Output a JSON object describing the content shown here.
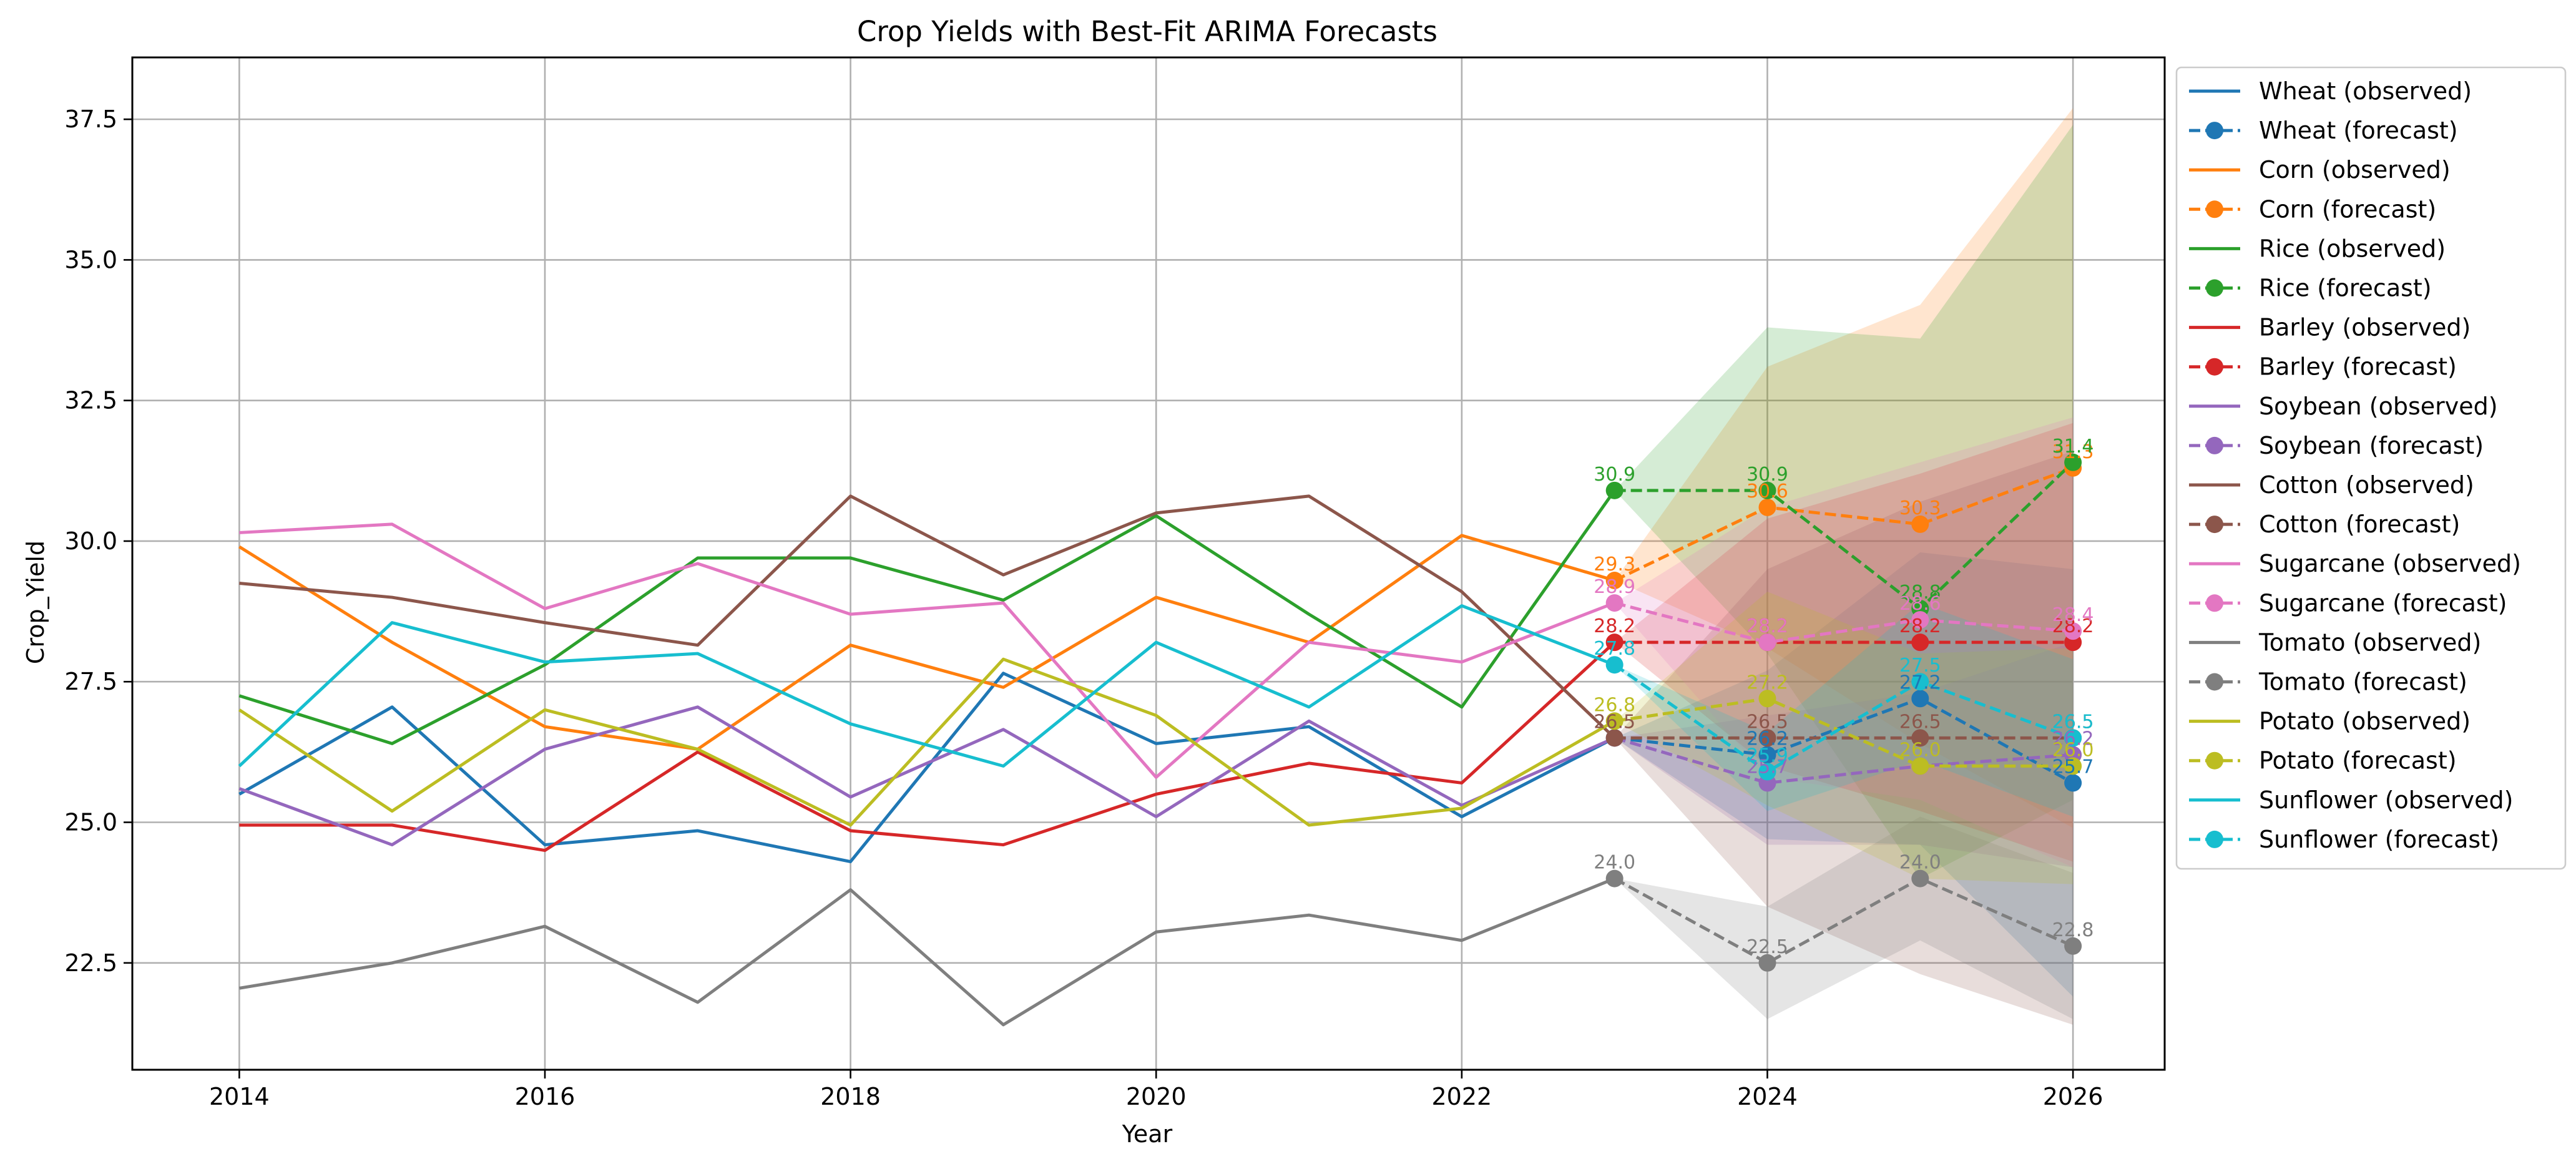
{
  "chart_data": {
    "type": "line",
    "title": "Crop Yields with Best-Fit ARIMA Forecasts",
    "xlabel": "Year",
    "ylabel": "Crop_Yield",
    "xlim": [
      2013.3,
      2026.6
    ],
    "ylim": [
      20.6,
      38.6
    ],
    "xticks": [
      2014,
      2016,
      2018,
      2020,
      2022,
      2024,
      2026
    ],
    "xtick_labels": [
      "2014",
      "2016",
      "2018",
      "2020",
      "2022",
      "2024",
      "2026"
    ],
    "yticks": [
      22.5,
      25.0,
      27.5,
      30.0,
      32.5,
      35.0,
      37.5
    ],
    "ytick_labels": [
      "22.5",
      "25.0",
      "27.5",
      "30.0",
      "32.5",
      "35.0",
      "37.5"
    ],
    "grid": true,
    "legend_position": "outside-right",
    "observed_x": [
      2014,
      2015,
      2016,
      2017,
      2018,
      2019,
      2020,
      2021,
      2022,
      2023
    ],
    "forecast_x": [
      2023,
      2024,
      2025,
      2026
    ],
    "series": [
      {
        "name": "Wheat",
        "color": "#1f77b4",
        "observed_label": "Wheat (observed)",
        "forecast_label": "Wheat (forecast)",
        "observed": [
          25.5,
          27.05,
          24.6,
          24.85,
          24.3,
          27.65,
          26.4,
          26.7,
          25.1,
          26.5
        ],
        "forecast": [
          26.5,
          26.2,
          27.2,
          25.7
        ],
        "forecast_labels": [
          "",
          "26.2",
          "27.2",
          "25.7"
        ],
        "lower": [
          26.5,
          24.7,
          24.6,
          21.9
        ],
        "upper": [
          26.5,
          27.7,
          29.8,
          29.5
        ]
      },
      {
        "name": "Corn",
        "color": "#ff7f0e",
        "observed_label": "Corn (observed)",
        "forecast_label": "Corn (forecast)",
        "observed": [
          29.9,
          28.2,
          26.7,
          26.3,
          28.15,
          27.4,
          29.0,
          28.2,
          30.1,
          29.3
        ],
        "forecast": [
          29.3,
          30.6,
          30.3,
          31.3
        ],
        "forecast_labels": [
          "29.3",
          "30.6",
          "30.3",
          "31.3"
        ],
        "lower": [
          29.3,
          28.1,
          26.4,
          24.9
        ],
        "upper": [
          29.3,
          33.1,
          34.2,
          37.7
        ]
      },
      {
        "name": "Rice",
        "color": "#2ca02c",
        "observed_label": "Rice (observed)",
        "forecast_label": "Rice (forecast)",
        "observed": [
          27.25,
          26.4,
          27.8,
          29.7,
          29.7,
          28.95,
          30.45,
          28.7,
          27.05,
          30.9
        ],
        "forecast": [
          30.9,
          30.9,
          28.8,
          31.4
        ],
        "forecast_labels": [
          "30.9",
          "30.9",
          "28.8",
          "31.4"
        ],
        "lower": [
          30.9,
          28.0,
          24.0,
          25.4
        ],
        "upper": [
          30.9,
          33.8,
          33.6,
          37.4
        ]
      },
      {
        "name": "Barley",
        "color": "#d62728",
        "observed_label": "Barley (observed)",
        "forecast_label": "Barley (forecast)",
        "observed": [
          24.95,
          24.95,
          24.5,
          26.25,
          24.85,
          24.6,
          25.5,
          26.05,
          25.7,
          28.2
        ],
        "forecast": [
          28.2,
          28.2,
          28.2,
          28.2
        ],
        "forecast_labels": [
          "28.2",
          "28.2",
          "28.2",
          "28.2"
        ],
        "lower": [
          28.2,
          26.0,
          25.2,
          24.3
        ],
        "upper": [
          28.2,
          30.4,
          31.2,
          32.1
        ]
      },
      {
        "name": "Soybean",
        "color": "#9467bd",
        "observed_label": "Soybean (observed)",
        "forecast_label": "Soybean (forecast)",
        "observed": [
          25.6,
          24.6,
          26.3,
          27.05,
          25.45,
          26.65,
          25.1,
          26.8,
          25.3,
          26.5
        ],
        "forecast": [
          26.5,
          25.7,
          26.0,
          26.2
        ],
        "forecast_labels": [
          "",
          "25.7",
          "26.0",
          "26.2"
        ],
        "lower": [
          26.5,
          24.6,
          24.6,
          24.2
        ],
        "upper": [
          26.5,
          26.9,
          27.3,
          28.2
        ]
      },
      {
        "name": "Cotton",
        "color": "#8c564b",
        "observed_label": "Cotton (observed)",
        "forecast_label": "Cotton (forecast)",
        "observed": [
          29.25,
          29.0,
          28.55,
          28.15,
          30.8,
          29.4,
          30.5,
          30.8,
          29.1,
          26.5
        ],
        "forecast": [
          26.5,
          26.5,
          26.5,
          26.5
        ],
        "forecast_labels": [
          "26.5",
          "26.5",
          "26.5",
          "26.5"
        ],
        "lower": [
          26.5,
          23.5,
          22.3,
          21.4
        ],
        "upper": [
          26.5,
          29.5,
          30.7,
          31.6
        ]
      },
      {
        "name": "Sugarcane",
        "color": "#e377c2",
        "observed_label": "Sugarcane (observed)",
        "forecast_label": "Sugarcane (forecast)",
        "observed": [
          30.15,
          30.3,
          28.8,
          29.6,
          28.7,
          28.9,
          25.8,
          28.2,
          27.85,
          28.9
        ],
        "forecast": [
          28.9,
          28.2,
          28.6,
          28.4
        ],
        "forecast_labels": [
          "28.9",
          "28.2",
          "28.6",
          "28.4"
        ],
        "lower": [
          28.9,
          25.8,
          25.4,
          24.2
        ],
        "upper": [
          28.9,
          30.6,
          31.4,
          32.2
        ]
      },
      {
        "name": "Tomato",
        "color": "#7f7f7f",
        "observed_label": "Tomato (observed)",
        "forecast_label": "Tomato (forecast)",
        "observed": [
          22.05,
          22.5,
          23.15,
          21.8,
          23.8,
          21.4,
          23.05,
          23.35,
          22.9,
          24.0
        ],
        "forecast": [
          24.0,
          22.5,
          24.0,
          22.8
        ],
        "forecast_labels": [
          "24.0",
          "22.5",
          "24.0",
          "22.8"
        ],
        "lower": [
          24.0,
          21.5,
          22.9,
          21.5
        ],
        "upper": [
          24.0,
          23.5,
          25.1,
          24.1
        ]
      },
      {
        "name": "Potato",
        "color": "#bcbd22",
        "observed_label": "Potato (observed)",
        "forecast_label": "Potato (forecast)",
        "observed": [
          27.0,
          25.2,
          27.0,
          26.3,
          24.95,
          27.9,
          26.9,
          24.95,
          25.25,
          26.8
        ],
        "forecast": [
          26.8,
          27.2,
          26.0,
          26.0
        ],
        "forecast_labels": [
          "26.8",
          "27.2",
          "26.0",
          "26.0"
        ],
        "lower": [
          26.8,
          25.3,
          24.0,
          23.9
        ],
        "upper": [
          26.8,
          29.1,
          28.0,
          28.1
        ]
      },
      {
        "name": "Sunflower",
        "color": "#17becf",
        "observed_label": "Sunflower (observed)",
        "forecast_label": "Sunflower (forecast)",
        "observed": [
          26.0,
          28.55,
          27.85,
          28.0,
          26.75,
          26.0,
          28.2,
          27.05,
          28.85,
          27.8
        ],
        "forecast": [
          27.8,
          25.9,
          27.5,
          26.5
        ],
        "forecast_labels": [
          "27.8",
          "25.9",
          "27.5",
          "26.5"
        ],
        "lower": [
          27.8,
          25.2,
          26.1,
          25.1
        ],
        "upper": [
          27.8,
          26.6,
          28.9,
          27.9
        ]
      }
    ]
  }
}
